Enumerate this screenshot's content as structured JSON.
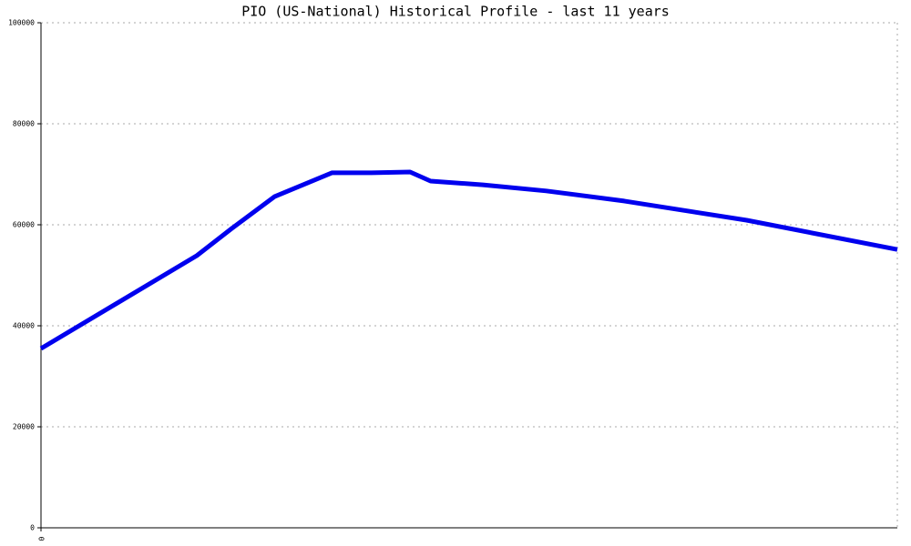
{
  "chart_data": {
    "type": "line",
    "title": "PIO (US-National) Historical Profile - last 11 years",
    "x": [
      0,
      18.2,
      22.3,
      27.3,
      34.0,
      38.6,
      43.1,
      45.5,
      51.6,
      59.0,
      68.1,
      82.4,
      100
    ],
    "xlim": [
      0,
      100
    ],
    "xticks": [
      0
    ],
    "series": [
      {
        "color": "#0000ee",
        "values": [
          35500,
          53900,
          59300,
          65600,
          70300,
          70300,
          70450,
          68650,
          67900,
          66700,
          64700,
          60900,
          55100
        ]
      }
    ],
    "ylim": [
      0,
      100000
    ],
    "yticks": [
      0,
      20000,
      40000,
      60000,
      80000,
      100000
    ],
    "grid": true
  }
}
